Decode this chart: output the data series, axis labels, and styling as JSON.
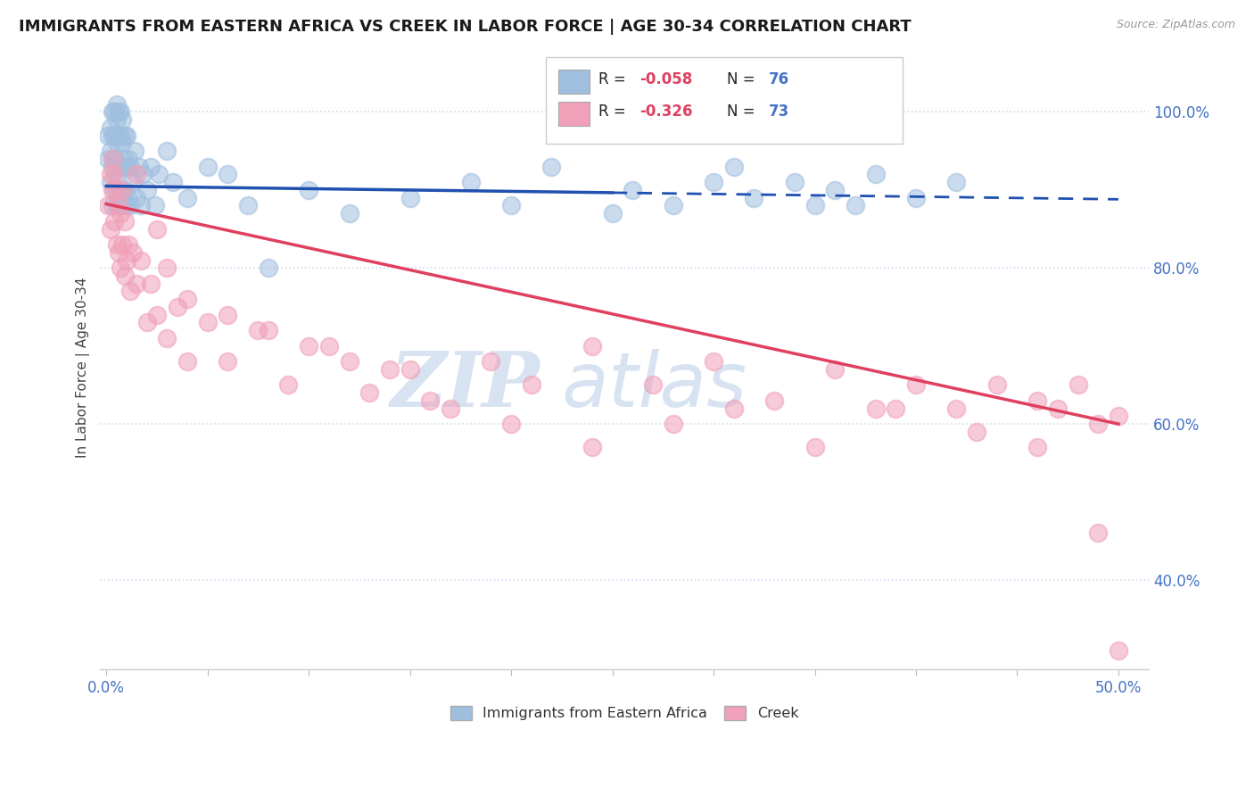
{
  "title": "IMMIGRANTS FROM EASTERN AFRICA VS CREEK IN LABOR FORCE | AGE 30-34 CORRELATION CHART",
  "source_text": "Source: ZipAtlas.com",
  "ylabel": "In Labor Force | Age 30-34",
  "xlim": [
    -0.003,
    0.515
  ],
  "ylim": [
    0.285,
    1.06
  ],
  "xtick_positions": [
    0.0,
    0.05,
    0.1,
    0.15,
    0.2,
    0.25,
    0.3,
    0.35,
    0.4,
    0.45,
    0.5
  ],
  "xtick_labels": [
    "0.0%",
    "",
    "",
    "",
    "",
    "",
    "",
    "",
    "",
    "",
    "50.0%"
  ],
  "ytick_positions": [
    0.4,
    0.6,
    0.8,
    1.0
  ],
  "ytick_labels": [
    "40.0%",
    "60.0%",
    "80.0%",
    "100.0%"
  ],
  "legend_r_blue": "-0.058",
  "legend_n_blue": "76",
  "legend_r_pink": "-0.326",
  "legend_n_pink": "73",
  "blue_color": "#a0bfdf",
  "pink_color": "#f0a0b8",
  "trend_blue_color": "#2050b0",
  "trend_pink_color": "#e04060",
  "grid_color": "#d0d8ec",
  "watermark_color": "#c8d8ec",
  "background_color": "#ffffff",
  "blue_scatter_x": [
    0.001,
    0.001,
    0.002,
    0.002,
    0.002,
    0.003,
    0.003,
    0.003,
    0.003,
    0.004,
    0.004,
    0.004,
    0.004,
    0.005,
    0.005,
    0.005,
    0.005,
    0.005,
    0.006,
    0.006,
    0.006,
    0.006,
    0.007,
    0.007,
    0.007,
    0.007,
    0.008,
    0.008,
    0.008,
    0.008,
    0.009,
    0.009,
    0.009,
    0.01,
    0.01,
    0.01,
    0.011,
    0.011,
    0.012,
    0.012,
    0.013,
    0.014,
    0.015,
    0.016,
    0.017,
    0.018,
    0.02,
    0.022,
    0.024,
    0.026,
    0.03,
    0.033,
    0.04,
    0.05,
    0.06,
    0.07,
    0.08,
    0.1,
    0.12,
    0.15,
    0.18,
    0.2,
    0.22,
    0.25,
    0.26,
    0.28,
    0.3,
    0.31,
    0.32,
    0.34,
    0.35,
    0.36,
    0.37,
    0.38,
    0.4,
    0.42
  ],
  "blue_scatter_y": [
    0.94,
    0.97,
    0.91,
    0.95,
    0.98,
    0.88,
    0.93,
    0.97,
    1.0,
    0.9,
    0.94,
    0.97,
    1.0,
    0.88,
    0.92,
    0.96,
    0.99,
    1.01,
    0.89,
    0.93,
    0.97,
    1.0,
    0.88,
    0.93,
    0.97,
    1.0,
    0.89,
    0.93,
    0.96,
    0.99,
    0.9,
    0.94,
    0.97,
    0.88,
    0.93,
    0.97,
    0.89,
    0.94,
    0.88,
    0.93,
    0.91,
    0.95,
    0.89,
    0.93,
    0.88,
    0.92,
    0.9,
    0.93,
    0.88,
    0.92,
    0.95,
    0.91,
    0.89,
    0.93,
    0.92,
    0.88,
    0.8,
    0.9,
    0.87,
    0.89,
    0.91,
    0.88,
    0.93,
    0.87,
    0.9,
    0.88,
    0.91,
    0.93,
    0.89,
    0.91,
    0.88,
    0.9,
    0.88,
    0.92,
    0.89,
    0.91
  ],
  "pink_scatter_x": [
    0.001,
    0.002,
    0.002,
    0.003,
    0.003,
    0.004,
    0.004,
    0.005,
    0.005,
    0.006,
    0.006,
    0.007,
    0.007,
    0.008,
    0.008,
    0.009,
    0.009,
    0.01,
    0.011,
    0.012,
    0.013,
    0.015,
    0.017,
    0.02,
    0.022,
    0.025,
    0.03,
    0.035,
    0.04,
    0.05,
    0.06,
    0.075,
    0.09,
    0.11,
    0.13,
    0.15,
    0.17,
    0.19,
    0.21,
    0.24,
    0.27,
    0.3,
    0.33,
    0.36,
    0.38,
    0.4,
    0.42,
    0.44,
    0.46,
    0.47,
    0.48,
    0.49,
    0.5,
    0.015,
    0.025,
    0.03,
    0.04,
    0.06,
    0.08,
    0.1,
    0.12,
    0.14,
    0.16,
    0.2,
    0.24,
    0.28,
    0.31,
    0.35,
    0.39,
    0.43,
    0.46,
    0.49,
    0.5
  ],
  "pink_scatter_y": [
    0.88,
    0.92,
    0.85,
    0.9,
    0.94,
    0.86,
    0.92,
    0.83,
    0.9,
    0.82,
    0.88,
    0.8,
    0.87,
    0.83,
    0.9,
    0.79,
    0.86,
    0.81,
    0.83,
    0.77,
    0.82,
    0.78,
    0.81,
    0.73,
    0.78,
    0.74,
    0.71,
    0.75,
    0.68,
    0.73,
    0.68,
    0.72,
    0.65,
    0.7,
    0.64,
    0.67,
    0.62,
    0.68,
    0.65,
    0.7,
    0.65,
    0.68,
    0.63,
    0.67,
    0.62,
    0.65,
    0.62,
    0.65,
    0.63,
    0.62,
    0.65,
    0.6,
    0.61,
    0.92,
    0.85,
    0.8,
    0.76,
    0.74,
    0.72,
    0.7,
    0.68,
    0.67,
    0.63,
    0.6,
    0.57,
    0.6,
    0.62,
    0.57,
    0.62,
    0.59,
    0.57,
    0.46,
    0.31
  ]
}
